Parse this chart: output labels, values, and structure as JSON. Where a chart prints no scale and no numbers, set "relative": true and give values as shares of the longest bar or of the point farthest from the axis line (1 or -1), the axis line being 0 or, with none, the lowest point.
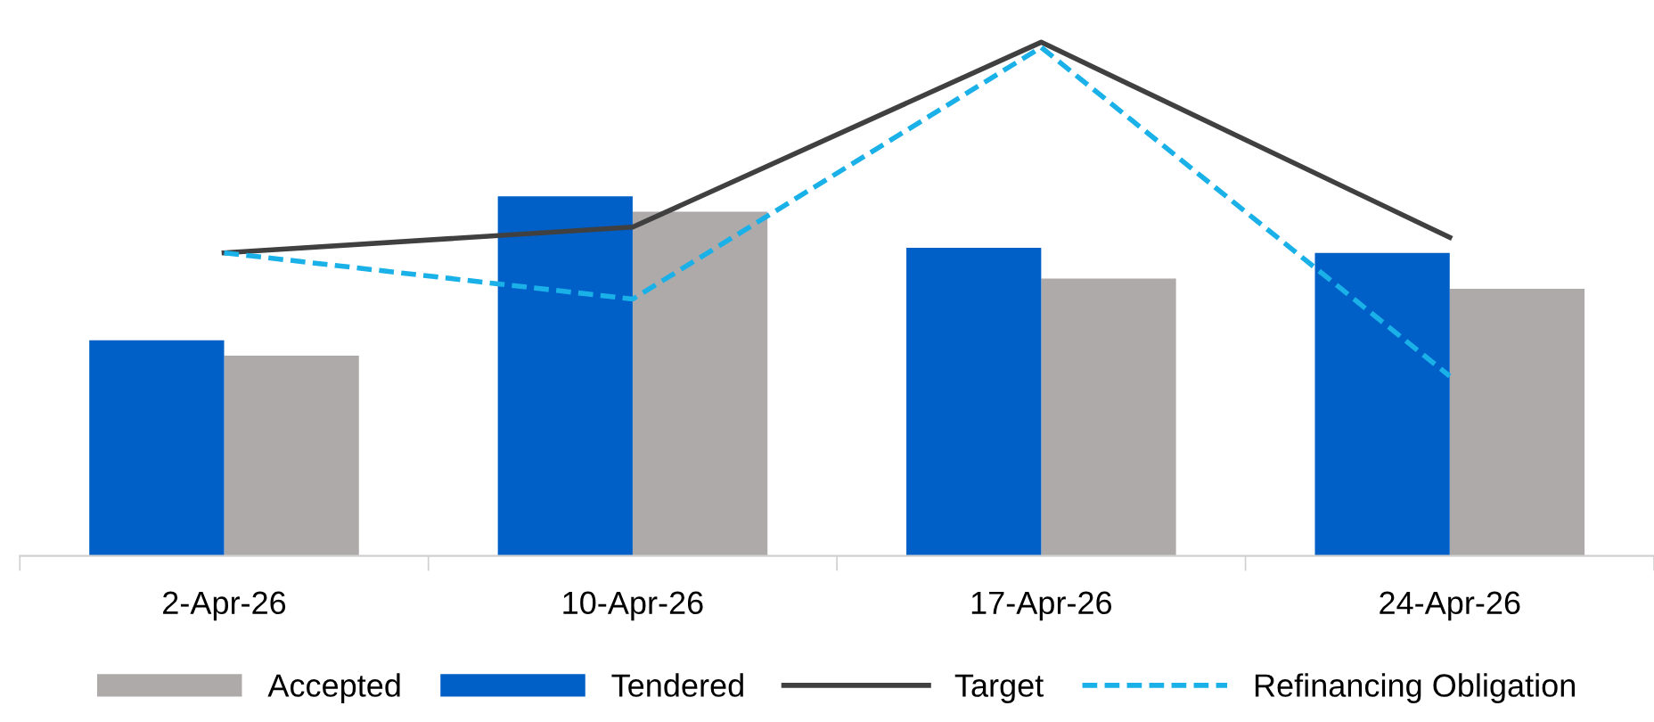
{
  "chart_data": {
    "type": "bar",
    "relative": true,
    "categories": [
      "2-Apr-26",
      "10-Apr-26",
      "17-Apr-26",
      "24-Apr-26"
    ],
    "series": [
      {
        "name": "Accepted",
        "color": "#aeaaaa",
        "values": [
          0.39,
          0.67,
          0.54,
          0.52
        ]
      },
      {
        "name": "Tendered",
        "color": "#0060c8",
        "values": [
          0.42,
          0.7,
          0.6,
          0.59
        ]
      },
      {
        "name": "Target",
        "type": "line",
        "color": "#404040",
        "line_style": "solid",
        "values": [
          0.59,
          0.64,
          1,
          0.62
        ]
      },
      {
        "name": "Refinancing Obligation",
        "type": "line",
        "color": "#1ab0e8",
        "line_style": "dashed",
        "values": [
          0.59,
          0.5,
          0.99,
          0.35
        ]
      }
    ],
    "legend": "bottom",
    "grid": false,
    "marker": "none"
  }
}
